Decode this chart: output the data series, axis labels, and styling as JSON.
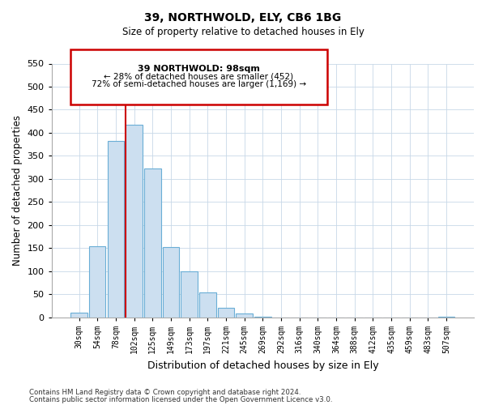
{
  "title": "39, NORTHWOLD, ELY, CB6 1BG",
  "subtitle": "Size of property relative to detached houses in Ely",
  "xlabel": "Distribution of detached houses by size in Ely",
  "ylabel": "Number of detached properties",
  "categories": [
    "30sqm",
    "54sqm",
    "78sqm",
    "102sqm",
    "125sqm",
    "149sqm",
    "173sqm",
    "197sqm",
    "221sqm",
    "245sqm",
    "269sqm",
    "292sqm",
    "316sqm",
    "340sqm",
    "364sqm",
    "388sqm",
    "412sqm",
    "435sqm",
    "459sqm",
    "483sqm",
    "507sqm"
  ],
  "values": [
    10,
    155,
    382,
    418,
    322,
    152,
    100,
    54,
    20,
    8,
    2,
    0,
    0,
    0,
    0,
    0,
    0,
    0,
    0,
    0,
    2
  ],
  "bar_color": "#ccdff0",
  "bar_edge_color": "#6aaed6",
  "vline_color": "#cc0000",
  "vline_x_index": 3,
  "ylim": [
    0,
    550
  ],
  "yticks": [
    0,
    50,
    100,
    150,
    200,
    250,
    300,
    350,
    400,
    450,
    500,
    550
  ],
  "annotation_title": "39 NORTHWOLD: 98sqm",
  "annotation_line1": "← 28% of detached houses are smaller (452)",
  "annotation_line2": "72% of semi-detached houses are larger (1,169) →",
  "annotation_box_color": "#ffffff",
  "annotation_box_edge": "#cc0000",
  "footnote1": "Contains HM Land Registry data © Crown copyright and database right 2024.",
  "footnote2": "Contains public sector information licensed under the Open Government Licence v3.0."
}
